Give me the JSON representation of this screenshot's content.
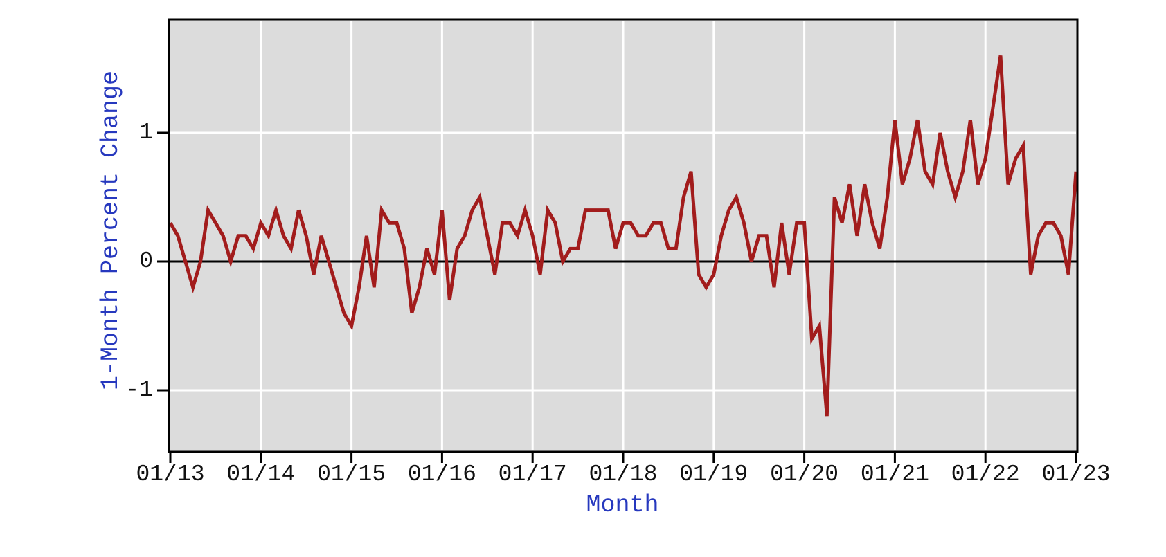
{
  "figure": {
    "xlabel": "Month",
    "ylabel": "1-Month Percent Change"
  },
  "colors": {
    "page_bg": "#FFFFFF",
    "plot_bg": "#DCDCDC",
    "gridline": "#FFFFFF",
    "zero_line": "#000000",
    "frame": "#000000",
    "tick_mark": "#000000",
    "tick_text": "#111111",
    "axis_label_text": "#2638BE",
    "series_line": "#A21C1C"
  },
  "chart_data": {
    "type": "line",
    "title": "",
    "xlabel": "Month",
    "ylabel": "1-Month Percent Change",
    "x_start": "2013-01",
    "x_end": "2023-01",
    "x_step": "1 month",
    "x_tick_labels": [
      "01/13",
      "01/14",
      "01/15",
      "01/16",
      "01/17",
      "01/18",
      "01/19",
      "01/20",
      "01/21",
      "01/22",
      "01/23"
    ],
    "y_ticks": [
      1,
      0,
      -1
    ],
    "y_tick_labels": [
      "1",
      "0",
      "-1"
    ],
    "ylim": [
      -1.47,
      1.87
    ],
    "grid": "white gridlines at each year and at y=1,-1; black line at y=0",
    "legend": "none",
    "series": [
      {
        "name": "1-Month Percent Change",
        "values": [
          0.3,
          0.2,
          0.0,
          -0.2,
          0.0,
          0.4,
          0.3,
          0.2,
          0.0,
          0.2,
          0.2,
          0.1,
          0.3,
          0.2,
          0.4,
          0.2,
          0.1,
          0.4,
          0.2,
          -0.1,
          0.2,
          0.0,
          -0.2,
          -0.4,
          -0.5,
          -0.2,
          0.2,
          -0.2,
          0.4,
          0.3,
          0.3,
          0.1,
          -0.4,
          -0.2,
          0.1,
          -0.1,
          0.4,
          -0.3,
          0.1,
          0.2,
          0.4,
          0.5,
          0.2,
          -0.1,
          0.3,
          0.3,
          0.2,
          0.4,
          0.2,
          -0.1,
          0.4,
          0.3,
          0.0,
          0.1,
          0.1,
          0.4,
          0.4,
          0.4,
          0.4,
          0.1,
          0.3,
          0.3,
          0.2,
          0.2,
          0.3,
          0.3,
          0.1,
          0.1,
          0.5,
          0.7,
          -0.1,
          -0.2,
          -0.1,
          0.2,
          0.4,
          0.5,
          0.3,
          0.0,
          0.2,
          0.2,
          -0.2,
          0.3,
          -0.1,
          0.3,
          0.3,
          -0.6,
          -0.5,
          -1.2,
          0.5,
          0.3,
          0.6,
          0.2,
          0.6,
          0.3,
          0.1,
          0.5,
          1.1,
          0.6,
          0.8,
          1.1,
          0.7,
          0.6,
          1.0,
          0.7,
          0.5,
          0.7,
          1.1,
          0.6,
          0.8,
          1.2,
          1.6,
          0.6,
          0.8,
          0.9,
          -0.1,
          0.2,
          0.3,
          0.3,
          0.2,
          -0.1,
          0.7
        ]
      }
    ]
  }
}
